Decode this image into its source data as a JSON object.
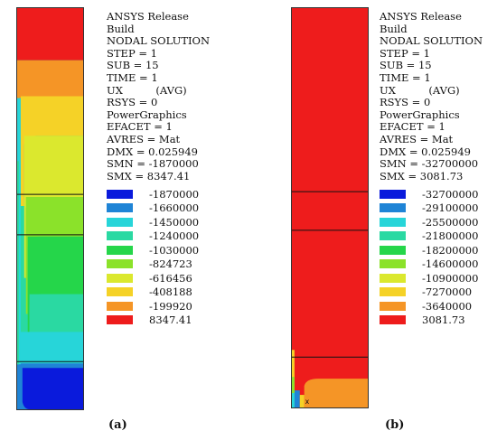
{
  "panels": [
    {
      "info": [
        "ANSYS Release",
        "Build",
        "NODAL SOLUTION",
        "STEP = 1",
        "SUB = 15",
        "TIME = 1",
        "UX          (AVG)",
        "RSYS = 0",
        "PowerGraphics",
        "EFACET = 1",
        "AVRES = Mat",
        "DMX = 0.025949",
        "SMN = -1870000",
        "SMX = 8347.41"
      ],
      "legend": [
        {
          "label": "-1870000",
          "color": "#0a1adc"
        },
        {
          "label": "-1660000",
          "color": "#1f84d6"
        },
        {
          "label": "-1450000",
          "color": "#27d5d9"
        },
        {
          "label": "-1240000",
          "color": "#2ad9a2"
        },
        {
          "label": "-1030000",
          "color": "#25d64a"
        },
        {
          "label": "-824723",
          "color": "#8be22a"
        },
        {
          "label": "-616456",
          "color": "#dbe82e"
        },
        {
          "label": "-408188",
          "color": "#f5d227"
        },
        {
          "label": "-199920",
          "color": "#f59526"
        },
        {
          "label": "8347.41",
          "color": "#ee1c1c"
        }
      ],
      "caption": "(a)"
    },
    {
      "info": [
        "ANSYS Release",
        "Build",
        "NODAL SOLUTION",
        "STEP = 1",
        "SUB = 15",
        "TIME = 1",
        "UX          (AVG)",
        "RSYS = 0",
        "PowerGraphics",
        "EFACET = 1",
        "AVRES = Mat",
        "DMX = 0.025949",
        "SMN = -32700000",
        "SMX = 3081.73"
      ],
      "legend": [
        {
          "label": "-32700000",
          "color": "#0a1adc"
        },
        {
          "label": "-29100000",
          "color": "#1f84d6"
        },
        {
          "label": "-25500000",
          "color": "#27d5d9"
        },
        {
          "label": "-21800000",
          "color": "#2ad9a2"
        },
        {
          "label": "-18200000",
          "color": "#25d64a"
        },
        {
          "label": "-14600000",
          "color": "#8be22a"
        },
        {
          "label": "-10900000",
          "color": "#dbe82e"
        },
        {
          "label": "-7270000",
          "color": "#f5d227"
        },
        {
          "label": "-3640000",
          "color": "#f59526"
        },
        {
          "label": "3081.73",
          "color": "#ee1c1c"
        }
      ],
      "caption": "(b)"
    }
  ]
}
